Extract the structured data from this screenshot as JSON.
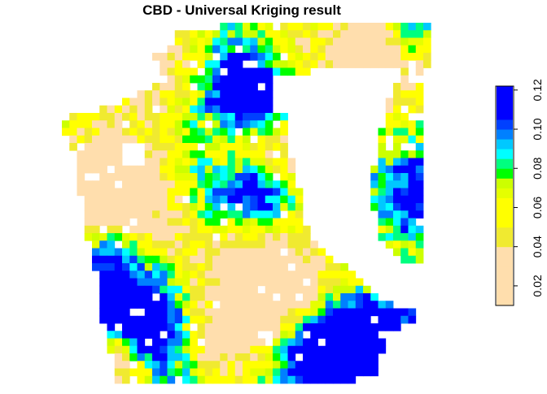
{
  "chart_data": {
    "type": "heatmap",
    "title": "CBD - Universal Kriging result",
    "xlabel": "",
    "ylabel": "",
    "grid": false,
    "legend": {
      "placement": "right",
      "range": [
        0.01,
        0.122
      ],
      "ticks": [
        0.02,
        0.04,
        0.06,
        0.08,
        0.1,
        0.12
      ],
      "tick_labels": [
        "0.02",
        "0.04",
        "0.06",
        "0.08",
        "0.10",
        "0.12"
      ],
      "breaks": [
        0.01,
        0.02,
        0.03,
        0.04,
        0.05,
        0.06,
        0.065,
        0.07,
        0.075,
        0.08,
        0.085,
        0.09,
        0.095,
        0.1,
        0.105,
        0.122
      ],
      "colors": [
        "#FFDEAD",
        "#FFDEAD",
        "#FFDEAD",
        "#F0EA30",
        "#FFFF00",
        "#FFFF00",
        "#E5FF00",
        "#CCFF00",
        "#00FF00",
        "#00FF7F",
        "#00FFFF",
        "#00C8FF",
        "#0080FF",
        "#0040FF",
        "#0000FF",
        "#5A00FF"
      ]
    },
    "value_classes": [
      0.015,
      0.045,
      0.055,
      0.062,
      0.072,
      0.08,
      0.087,
      0.093,
      0.1,
      0.115
    ]
  }
}
